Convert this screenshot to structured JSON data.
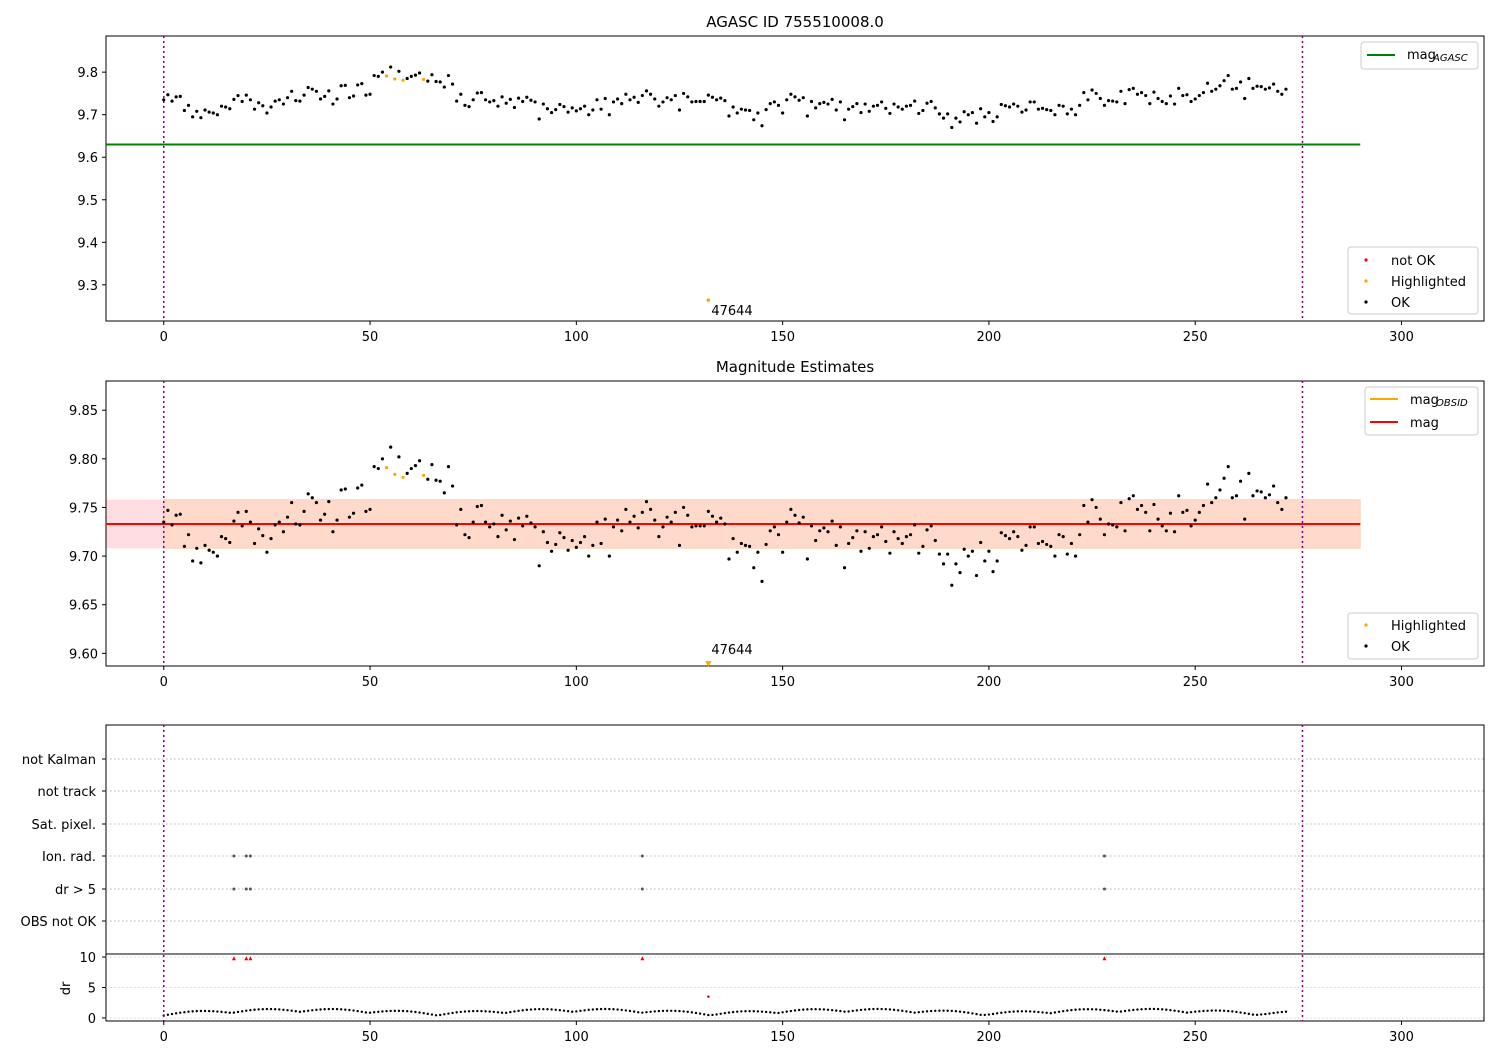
{
  "chart_data": [
    {
      "type": "scatter",
      "title": "AGASC ID 755510008.0",
      "xlim": [
        -14,
        320
      ],
      "ylim": [
        9.215,
        9.885
      ],
      "xticks": [
        0,
        50,
        100,
        150,
        200,
        250,
        300
      ],
      "yticks": [
        9.3,
        9.4,
        9.5,
        9.6,
        9.7,
        9.8
      ],
      "vlines": [
        0,
        276
      ],
      "line": {
        "label": "mag",
        "sub": "AGASC",
        "value": 9.63,
        "x": [
          -14,
          290
        ],
        "color": "#008000"
      },
      "legend_top": {
        "position": "top-right",
        "entries": [
          {
            "label": "mag",
            "sub": "AGASC",
            "color": "#008000",
            "kind": "line"
          }
        ]
      },
      "legend_bottom": {
        "position": "bottom-right",
        "entries": [
          {
            "label": "not OK",
            "color": "#ff0000",
            "kind": "dot"
          },
          {
            "label": "Highlighted",
            "color": "#ffa500",
            "kind": "dot"
          },
          {
            "label": "OK",
            "color": "#000000",
            "kind": "dot"
          }
        ]
      },
      "highlighted_x": [
        54,
        56,
        58,
        63
      ],
      "outlier": {
        "x": 132,
        "y": 9.264,
        "label": "47644"
      },
      "series_y": [
        9.735,
        9.747,
        9.732,
        9.742,
        9.743,
        9.71,
        9.722,
        9.695,
        9.708,
        9.693,
        9.711,
        9.706,
        9.704,
        9.7,
        9.72,
        9.718,
        9.714,
        9.736,
        9.745,
        9.731,
        9.746,
        9.735,
        9.713,
        9.728,
        9.721,
        9.704,
        9.718,
        9.732,
        9.735,
        9.725,
        9.74,
        9.755,
        9.733,
        9.732,
        9.746,
        9.764,
        9.76,
        9.755,
        9.737,
        9.743,
        9.756,
        9.725,
        9.737,
        9.768,
        9.769,
        9.74,
        9.744,
        9.77,
        9.773,
        9.746,
        9.748,
        9.792,
        9.79,
        9.8,
        9.791,
        9.812,
        9.784,
        9.802,
        9.781,
        9.785,
        9.79,
        9.793,
        9.798,
        9.783,
        9.779,
        9.794,
        9.778,
        9.777,
        9.765,
        9.792,
        9.772,
        9.732,
        9.748,
        9.722,
        9.719,
        9.735,
        9.751,
        9.752,
        9.735,
        9.73,
        9.733,
        9.72,
        9.742,
        9.727,
        9.736,
        9.717,
        9.739,
        9.731,
        9.741,
        9.734,
        9.73,
        9.69,
        9.725,
        9.714,
        9.705,
        9.712,
        9.724,
        9.719,
        9.706,
        9.716,
        9.709,
        9.714,
        9.72,
        9.7,
        9.711,
        9.735,
        9.713,
        9.738,
        9.7,
        9.73,
        9.737,
        9.726,
        9.748,
        9.735,
        9.741,
        9.729,
        9.745,
        9.756,
        9.748,
        9.737,
        9.72,
        9.73,
        9.74,
        9.735,
        9.745,
        9.711,
        9.75,
        9.742,
        9.73,
        9.731,
        9.731,
        9.731,
        9.746,
        9.741,
        9.735,
        9.739,
        9.733,
        9.697,
        9.718,
        9.704,
        9.713,
        9.711,
        9.71,
        9.688,
        9.704,
        9.674,
        9.712,
        9.726,
        9.73,
        9.722,
        9.704,
        9.735,
        9.748,
        9.742,
        9.734,
        9.74,
        9.697,
        9.731,
        9.716,
        9.726,
        9.729,
        9.725,
        9.736,
        9.711,
        9.73,
        9.688,
        9.713,
        9.719,
        9.726,
        9.705,
        9.725,
        9.708,
        9.72,
        9.722,
        9.73,
        9.715,
        9.703,
        9.725,
        9.718,
        9.713,
        9.72,
        9.722,
        9.732,
        9.703,
        9.71,
        9.727,
        9.731,
        9.716,
        9.702,
        9.692,
        9.702,
        9.67,
        9.692,
        9.683,
        9.707,
        9.7,
        9.705,
        9.68,
        9.714,
        9.695,
        9.705,
        9.684,
        9.695,
        9.724,
        9.721,
        9.718,
        9.725,
        9.72,
        9.706,
        9.711,
        9.73,
        9.73,
        9.713,
        9.715,
        9.712,
        9.71,
        9.7,
        9.722,
        9.72,
        9.702,
        9.713,
        9.7,
        9.722,
        9.752,
        9.735,
        9.758,
        9.75,
        9.738,
        9.722,
        9.733,
        9.732,
        9.73,
        9.755,
        9.726,
        9.759,
        9.762,
        9.748,
        9.752,
        9.745,
        9.726,
        9.753,
        9.738,
        9.731,
        9.726,
        9.744,
        9.725,
        9.762,
        9.745,
        9.747,
        9.731,
        9.737,
        9.745,
        9.752,
        9.774,
        9.755,
        9.76,
        9.768,
        9.78,
        9.792,
        9.76,
        9.762,
        9.777,
        9.738,
        9.785,
        9.762,
        9.767,
        9.766,
        9.76,
        9.763,
        9.772,
        9.755,
        9.748,
        9.76
      ]
    },
    {
      "type": "scatter",
      "title": "Magnitude Estimates",
      "xlim": [
        -14,
        320
      ],
      "ylim": [
        9.587,
        9.88
      ],
      "xticks": [
        0,
        50,
        100,
        150,
        200,
        250,
        300
      ],
      "yticks": [
        9.6,
        9.65,
        9.7,
        9.75,
        9.8,
        9.85
      ],
      "ytick_labels": [
        "9.60",
        "9.65",
        "9.70",
        "9.75",
        "9.80",
        "9.85"
      ],
      "vlines": [
        0,
        276
      ],
      "mag_line": {
        "value": 9.733,
        "color": "#ff0000"
      },
      "mag_obsid_line": {
        "value": 9.733,
        "color": "#ffa500"
      },
      "bands": [
        {
          "y0": 9.708,
          "y1": 9.758,
          "x": [
            -14,
            290
          ],
          "color": "#ffc0cb"
        },
        {
          "y0": 9.708,
          "y1": 9.758,
          "x": [
            0,
            290
          ],
          "color": "#ffdab9"
        }
      ],
      "legend_top": {
        "position": "top-right",
        "entries": [
          {
            "label": "mag",
            "sub": "OBSID",
            "color": "#ffa500",
            "kind": "line"
          },
          {
            "label": "mag",
            "sub": "",
            "color": "#ff0000",
            "kind": "line"
          }
        ]
      },
      "legend_bottom": {
        "position": "bottom-right",
        "entries": [
          {
            "label": "Highlighted",
            "color": "#ffa500",
            "kind": "dot"
          },
          {
            "label": "OK",
            "color": "#000000",
            "kind": "dot"
          }
        ]
      },
      "outlier": {
        "x": 132,
        "y": 9.59,
        "label": "47644"
      }
    },
    {
      "type": "scatter",
      "title": "",
      "xlim": [
        -14,
        320
      ],
      "xticks": [
        0,
        50,
        100,
        150,
        200,
        250,
        300
      ],
      "vlines": [
        0,
        276
      ],
      "flag_rows": [
        "not Kalman",
        "not track",
        "Sat. pixel.",
        "Ion. rad.",
        "dr > 5",
        "OBS not OK"
      ],
      "flag_points": [
        {
          "row": "Ion. rad.",
          "x": [
            17,
            20,
            21,
            116,
            228
          ]
        },
        {
          "row": "dr > 5",
          "x": [
            17,
            20,
            21,
            116,
            228
          ]
        }
      ],
      "dr": {
        "ylabel": "dr",
        "ylim": [
          -0.5,
          10.5
        ],
        "yticks": [
          0,
          5,
          10
        ],
        "high_points_x": [
          17,
          20,
          21,
          116,
          228
        ],
        "high_value": 9.8,
        "mid_point": {
          "x": 132,
          "y": 3.5
        },
        "red": "#ff0000"
      }
    }
  ]
}
